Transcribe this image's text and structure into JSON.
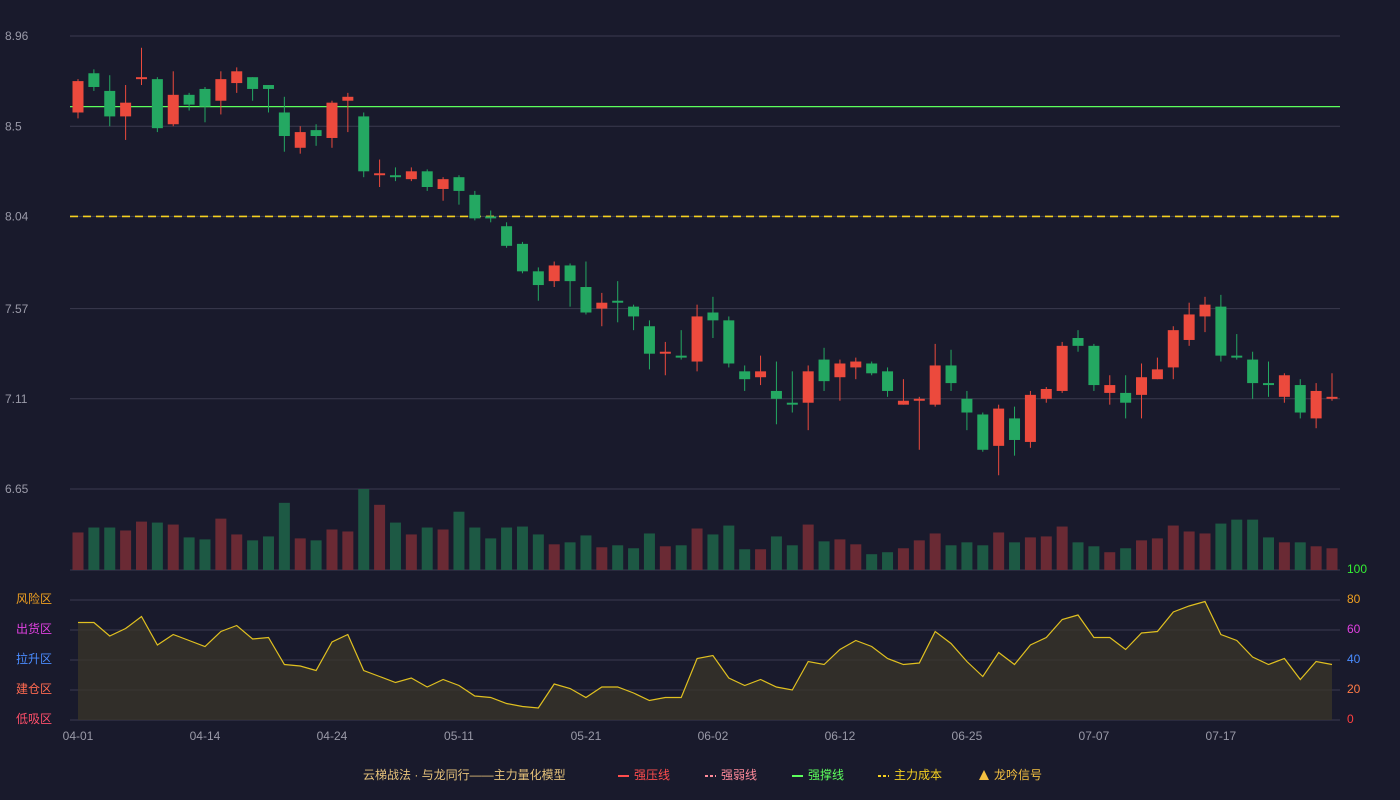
{
  "chart_data": {
    "type": "candlestick",
    "title": "云梯战法 · 与龙同行——主力量化模型",
    "categories": [
      "04-01",
      null,
      null,
      null,
      null,
      null,
      null,
      null,
      "04-14",
      null,
      null,
      null,
      null,
      null,
      null,
      null,
      "04-24",
      null,
      null,
      null,
      null,
      null,
      null,
      null,
      "05-11",
      null,
      null,
      null,
      null,
      null,
      null,
      null,
      "05-21",
      null,
      null,
      null,
      null,
      null,
      null,
      null,
      "06-02",
      null,
      null,
      null,
      null,
      null,
      null,
      null,
      "06-12",
      null,
      null,
      null,
      null,
      null,
      null,
      null,
      "06-25",
      null,
      null,
      null,
      null,
      null,
      null,
      null,
      "07-07",
      null,
      null,
      null,
      null,
      null,
      null,
      null,
      "07-17",
      null,
      null,
      null,
      null,
      null,
      null,
      null
    ],
    "open": [
      8.57,
      8.77,
      8.68,
      8.55,
      8.74,
      8.74,
      8.51,
      8.66,
      8.69,
      8.63,
      8.72,
      8.75,
      8.71,
      8.57,
      8.39,
      8.48,
      8.44,
      8.63,
      8.55,
      8.25,
      8.25,
      8.23,
      8.27,
      8.18,
      8.24,
      8.15,
      8.04,
      7.99,
      7.9,
      7.76,
      7.71,
      7.79,
      7.68,
      7.57,
      7.61,
      7.58,
      7.48,
      7.34,
      7.33,
      7.3,
      7.55,
      7.51,
      7.25,
      7.22,
      7.15,
      7.09,
      7.09,
      7.31,
      7.22,
      7.27,
      7.29,
      7.25,
      7.08,
      7.1,
      7.08,
      7.28,
      7.11,
      7.03,
      6.87,
      7.01,
      6.89,
      7.11,
      7.15,
      7.42,
      7.38,
      7.14,
      7.14,
      7.13,
      7.21,
      7.27,
      7.41,
      7.53,
      7.58,
      7.33,
      7.31,
      7.19,
      7.12,
      7.18,
      7.01,
      7.11
    ],
    "close": [
      8.73,
      8.7,
      8.55,
      8.62,
      8.75,
      8.49,
      8.66,
      8.61,
      8.6,
      8.74,
      8.78,
      8.69,
      8.69,
      8.45,
      8.47,
      8.45,
      8.62,
      8.65,
      8.27,
      8.26,
      8.24,
      8.27,
      8.19,
      8.23,
      8.17,
      8.03,
      8.03,
      7.89,
      7.76,
      7.69,
      7.79,
      7.71,
      7.55,
      7.6,
      7.6,
      7.53,
      7.34,
      7.35,
      7.32,
      7.53,
      7.51,
      7.29,
      7.21,
      7.25,
      7.11,
      7.08,
      7.25,
      7.2,
      7.29,
      7.3,
      7.24,
      7.15,
      7.1,
      7.11,
      7.28,
      7.19,
      7.04,
      6.85,
      7.06,
      6.9,
      7.13,
      7.16,
      7.38,
      7.38,
      7.18,
      7.18,
      7.09,
      7.22,
      7.26,
      7.46,
      7.54,
      7.59,
      7.33,
      7.32,
      7.19,
      7.18,
      7.23,
      7.04,
      7.15,
      7.12
    ],
    "high": [
      8.74,
      8.79,
      8.76,
      8.71,
      8.9,
      8.75,
      8.78,
      8.67,
      8.7,
      8.78,
      8.8,
      8.75,
      8.71,
      8.65,
      8.5,
      8.51,
      8.63,
      8.67,
      8.57,
      8.33,
      8.29,
      8.29,
      8.28,
      8.24,
      8.25,
      8.17,
      8.07,
      8.01,
      7.91,
      7.78,
      7.81,
      7.8,
      7.81,
      7.65,
      7.71,
      7.59,
      7.51,
      7.4,
      7.46,
      7.59,
      7.63,
      7.53,
      7.28,
      7.33,
      7.3,
      7.25,
      7.28,
      7.37,
      7.31,
      7.32,
      7.3,
      7.27,
      7.21,
      7.12,
      7.39,
      7.36,
      7.15,
      7.04,
      7.08,
      7.07,
      7.15,
      7.17,
      7.4,
      7.46,
      7.39,
      7.23,
      7.23,
      7.29,
      7.32,
      7.48,
      7.6,
      7.63,
      7.64,
      7.44,
      7.35,
      7.3,
      7.24,
      7.21,
      7.19,
      7.24
    ],
    "low": [
      8.54,
      8.68,
      8.5,
      8.43,
      8.71,
      8.47,
      8.5,
      8.58,
      8.52,
      8.56,
      8.67,
      8.63,
      8.57,
      8.37,
      8.36,
      8.4,
      8.39,
      8.47,
      8.24,
      8.19,
      8.22,
      8.22,
      8.17,
      8.12,
      8.1,
      8.02,
      8.01,
      7.88,
      7.75,
      7.61,
      7.68,
      7.58,
      7.54,
      7.48,
      7.5,
      7.46,
      7.26,
      7.23,
      7.31,
      7.25,
      7.42,
      7.27,
      7.15,
      7.18,
      6.98,
      7.04,
      6.95,
      7.15,
      7.1,
      7.21,
      7.23,
      7.12,
      7.08,
      6.85,
      7.07,
      7.15,
      6.95,
      6.84,
      6.72,
      6.82,
      6.86,
      7.09,
      7.14,
      7.35,
      7.15,
      7.08,
      7.01,
      7.01,
      7.21,
      7.21,
      7.38,
      7.45,
      7.3,
      7.31,
      7.11,
      7.12,
      7.09,
      7.01,
      6.96,
      7.1
    ],
    "volume": [
      38,
      43,
      43,
      40,
      49,
      48,
      46,
      33,
      31,
      52,
      36,
      30,
      34,
      68,
      32,
      30,
      41,
      39,
      82,
      66,
      48,
      36,
      43,
      41,
      59,
      43,
      32,
      43,
      44,
      36,
      26,
      28,
      35,
      23,
      25,
      22,
      37,
      24,
      25,
      42,
      36,
      45,
      21,
      21,
      34,
      25,
      46,
      29,
      31,
      26,
      16,
      18,
      22,
      30,
      37,
      25,
      28,
      25,
      38,
      28,
      33,
      34,
      44,
      28,
      24,
      18,
      22,
      30,
      32,
      45,
      39,
      37,
      47,
      51,
      51,
      33,
      28,
      28,
      24,
      22
    ],
    "ylim": [
      6.65,
      8.96
    ],
    "yticks": [
      8.96,
      8.5,
      8.04,
      7.57,
      7.11,
      6.65
    ],
    "grid": true,
    "up_color": "#ec4a3d",
    "down_color": "#24a862",
    "volume_up_color": "#6a2a34",
    "volume_down_color": "#1d5944",
    "lines": [
      {
        "name": "强压线",
        "color": "#ff4d4d",
        "style": "solid"
      },
      {
        "name": "强弱线",
        "color": "#ff8a9a",
        "style": "dashed"
      },
      {
        "name": "强撑线",
        "color": "#5cff5c",
        "style": "solid",
        "value": 8.6
      },
      {
        "name": "主力成本",
        "color": "#f5d020",
        "style": "dashed",
        "value": 8.04
      },
      {
        "name": "龙吟信号",
        "color": "#f5c040",
        "style": "triangle"
      }
    ],
    "indicator": {
      "values": [
        65,
        65,
        56,
        61,
        69,
        50,
        57,
        53,
        49,
        59,
        63,
        54,
        55,
        37,
        36,
        33,
        52,
        57,
        33,
        29,
        25,
        28,
        22,
        27,
        23,
        16,
        15,
        11,
        9,
        8,
        24,
        21,
        15,
        22,
        22,
        18,
        13,
        15,
        15,
        41,
        43,
        28,
        23,
        27,
        22,
        20,
        39,
        37,
        47,
        53,
        49,
        41,
        37,
        38,
        59,
        51,
        39,
        29,
        45,
        37,
        50,
        55,
        67,
        70,
        55,
        55,
        47,
        58,
        59,
        72,
        76,
        79,
        57,
        53,
        42,
        37,
        41,
        27,
        39,
        37
      ],
      "color": "#e0c020",
      "ylim": [
        0,
        100
      ],
      "yticks": [
        0,
        20,
        40,
        60,
        80,
        100
      ],
      "tick_colors": [
        "#ff4040",
        "#ff7a45",
        "#4a8cff",
        "#e040e0",
        "#f0a020",
        "#33ee33"
      ],
      "zones": [
        {
          "label": "低吸区",
          "value": 0,
          "color": "#ff4f6a"
        },
        {
          "label": "建仓区",
          "value": 20,
          "color": "#ff6a50"
        },
        {
          "label": "拉升区",
          "value": 40,
          "color": "#4a8cff"
        },
        {
          "label": "出货区",
          "value": 60,
          "color": "#e040e0"
        },
        {
          "label": "风险区",
          "value": 80,
          "color": "#f0a020"
        }
      ]
    }
  }
}
